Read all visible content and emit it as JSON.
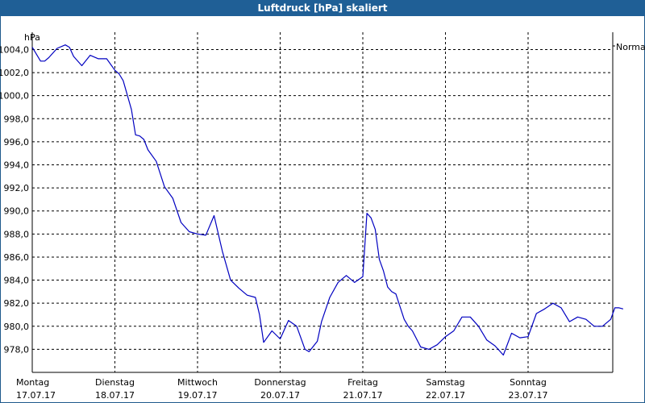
{
  "window": {
    "title": "Luftdruck [hPa] skaliert"
  },
  "colors": {
    "title_bar": "#1f5f96",
    "series": "#0000c0",
    "grid": "#000000"
  },
  "chart_data": {
    "type": "line",
    "title": "Luftdruck [hPa] skaliert",
    "ylabel": "hPa",
    "legend_position": "right",
    "grid": true,
    "ylim": [
      976.0,
      1005.5
    ],
    "y_ticks": [
      "1004,0",
      "1002,0",
      "1000,0",
      "998,0",
      "996,0",
      "994,0",
      "992,0",
      "990,0",
      "988,0",
      "986,0",
      "984,0",
      "982,0",
      "980,0",
      "978,0"
    ],
    "y_tick_values": [
      1004,
      1002,
      1000,
      998,
      996,
      994,
      992,
      990,
      988,
      986,
      984,
      982,
      980,
      978
    ],
    "x_ticks": [
      {
        "day": "Montag",
        "date": "17.07.17"
      },
      {
        "day": "Dienstag",
        "date": "18.07.17"
      },
      {
        "day": "Mittwoch",
        "date": "19.07.17"
      },
      {
        "day": "Donnerstag",
        "date": "20.07.17"
      },
      {
        "day": "Freitag",
        "date": "21.07.17"
      },
      {
        "day": "Samstag",
        "date": "22.07.17"
      },
      {
        "day": "Sonntag",
        "date": "23.07.17"
      }
    ],
    "xlim": [
      0,
      7
    ],
    "series": [
      {
        "name": "Normal",
        "x": [
          0,
          0.1,
          0.15,
          0.2,
          0.3,
          0.4,
          0.45,
          0.5,
          0.6,
          0.7,
          0.8,
          0.9,
          1.0,
          1.05,
          1.1,
          1.2,
          1.25,
          1.3,
          1.35,
          1.4,
          1.5,
          1.6,
          1.7,
          1.8,
          1.9,
          2.0,
          2.1,
          2.2,
          2.3,
          2.4,
          2.5,
          2.6,
          2.7,
          2.75,
          2.8,
          2.9,
          3.0,
          3.1,
          3.2,
          3.3,
          3.35,
          3.45,
          3.5,
          3.6,
          3.7,
          3.8,
          3.9,
          4.0,
          4.05,
          4.1,
          4.15,
          4.2,
          4.25,
          4.3,
          4.35,
          4.4,
          4.5,
          4.55,
          4.6,
          4.7,
          4.8,
          4.9,
          5.0,
          5.1,
          5.2,
          5.3,
          5.4,
          5.5,
          5.6,
          5.7,
          5.8,
          5.9,
          6.0,
          6.1,
          6.2,
          6.3,
          6.4,
          6.5,
          6.6,
          6.7,
          6.8,
          6.9,
          7.0,
          7.05,
          7.1,
          7.15
        ],
        "y": [
          1004.2,
          1003.0,
          1003.0,
          1003.3,
          1004.1,
          1004.4,
          1004.2,
          1003.4,
          1002.6,
          1003.5,
          1003.2,
          1003.2,
          1002.2,
          1001.9,
          1001.3,
          998.8,
          996.6,
          996.5,
          996.2,
          995.3,
          994.3,
          992.1,
          991.1,
          989.0,
          988.2,
          988.0,
          987.9,
          989.6,
          986.5,
          984.0,
          983.3,
          982.7,
          982.5,
          981.0,
          978.6,
          979.6,
          978.9,
          980.5,
          980.0,
          978.0,
          977.8,
          978.7,
          980.4,
          982.5,
          983.8,
          984.4,
          983.8,
          984.3,
          989.8,
          989.4,
          988.4,
          985.8,
          984.8,
          983.4,
          983.0,
          982.8,
          980.6,
          980.0,
          979.6,
          978.2,
          978.0,
          978.4,
          979.1,
          979.6,
          980.8,
          980.8,
          980.0,
          978.8,
          978.3,
          977.5,
          979.4,
          979.0,
          979.1,
          981.1,
          981.5,
          982.0,
          981.6,
          980.4,
          980.8,
          980.6,
          980.0,
          980.0,
          980.6,
          981.6,
          981.6,
          981.5
        ]
      }
    ]
  }
}
